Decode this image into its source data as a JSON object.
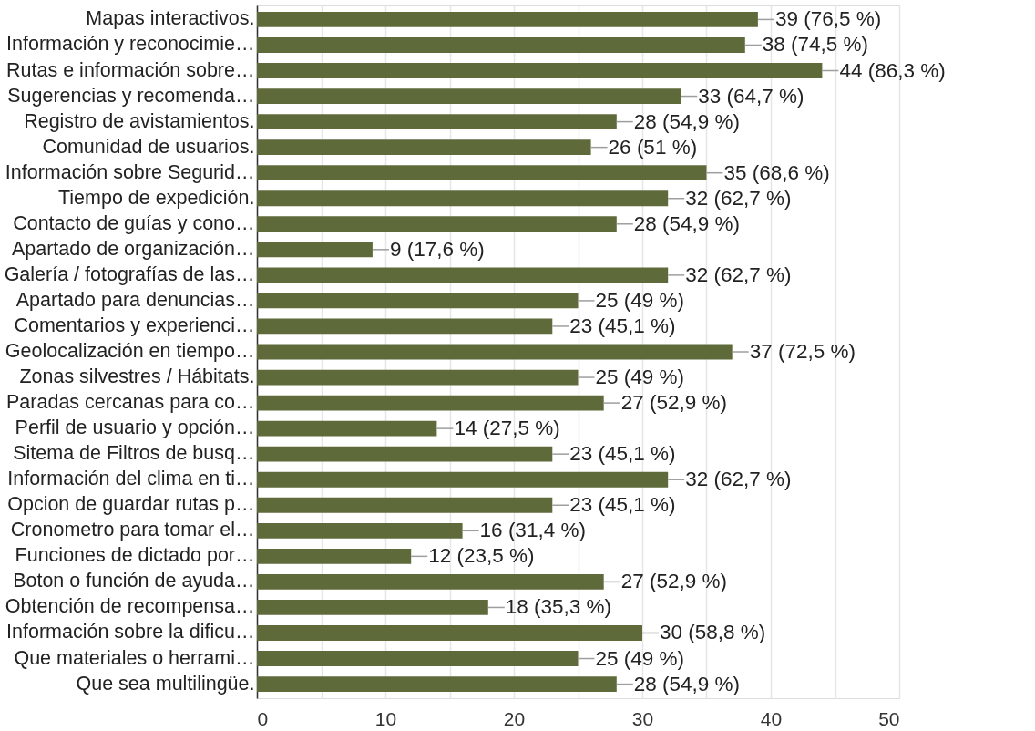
{
  "chart_data": {
    "type": "bar",
    "orientation": "horizontal",
    "categories": [
      "Mapas interactivos.",
      "Información y reconocimie…",
      "Rutas e información sobre…",
      "Sugerencias y recomenda…",
      "Registro de avistamientos.",
      "Comunidad de usuarios.",
      "Información sobre Segurid…",
      "Tiempo de expedición.",
      "Contacto de guías y cono…",
      "Apartado de organización…",
      "Galería / fotografías de las…",
      "Apartado para denuncias…",
      "Comentarios y experienci…",
      "Geolocalización en tiempo…",
      "Zonas silvestres / Hábitats.",
      "Paradas cercanas para co…",
      "Perfil de usuario y opción…",
      "Sitema de Filtros de busq…",
      "Información del clima en ti…",
      "Opcion de guardar rutas p…",
      "Cronometro para tomar el…",
      "Funciones de dictado por…",
      "Boton o función de ayuda…",
      "Obtención de recompensa…",
      "Información sobre la dificu…",
      "Que materiales o herrami…",
      "Que sea multilingüe."
    ],
    "values": [
      39,
      38,
      44,
      33,
      28,
      26,
      35,
      32,
      28,
      9,
      32,
      25,
      23,
      37,
      25,
      27,
      14,
      23,
      32,
      23,
      16,
      12,
      27,
      18,
      30,
      25,
      28
    ],
    "value_labels": [
      "39 (76,5 %)",
      "38 (74,5 %)",
      "44 (86,3 %)",
      "33 (64,7 %)",
      "28 (54,9 %)",
      "26 (51 %)",
      "35 (68,6 %)",
      "32 (62,7 %)",
      "28 (54,9 %)",
      "9 (17,6 %)",
      "32 (62,7 %)",
      "25 (49 %)",
      "23 (45,1 %)",
      "37 (72,5 %)",
      "25 (49 %)",
      "27 (52,9 %)",
      "14 (27,5 %)",
      "23 (45,1 %)",
      "32 (62,7 %)",
      "23 (45,1 %)",
      "16 (31,4 %)",
      "12 (23,5 %)",
      "27 (52,9 %)",
      "18 (35,3 %)",
      "30 (58,8 %)",
      "25 (49 %)",
      "28 (54,9 %)"
    ],
    "color": "#5f6a3b",
    "xlim": [
      0,
      50
    ],
    "xticks": [
      0,
      {
        "value": 5,
        "label": null
      },
      10,
      {
        "value": 15,
        "label": null
      },
      20,
      {
        "value": 25,
        "label": null
      },
      30,
      {
        "value": 35,
        "label": null
      },
      40,
      {
        "value": 45,
        "label": null
      },
      50
    ],
    "grid": "x"
  }
}
